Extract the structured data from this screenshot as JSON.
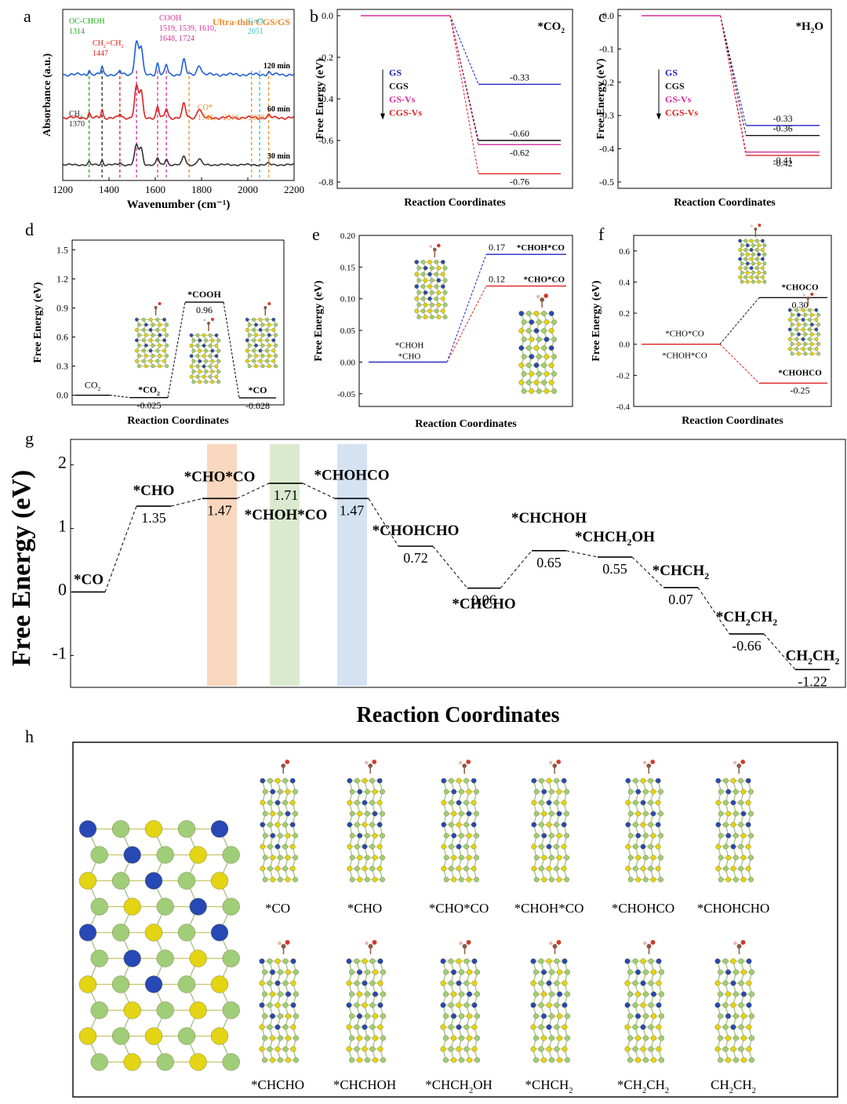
{
  "chart_data": [
    {
      "panel": "a",
      "type": "line",
      "xlabel": "Wavenumber (cm⁻¹)",
      "ylabel": "Absorbance (a.u.)",
      "xlim": [
        1200,
        2200
      ],
      "xticks": [
        "1200",
        "1400",
        "1600",
        "1800",
        "2000",
        "2200"
      ],
      "title": "Ultra-thin CGS/GS",
      "series": [
        {
          "name": "120 min",
          "color": "#1f5fd8"
        },
        {
          "name": "60 min",
          "color": "#e02020"
        },
        {
          "name": "30 min",
          "color": "#333333"
        }
      ],
      "annotations": [
        {
          "label": "OC-CHOH",
          "value": "1314",
          "x": 1314,
          "color": "#19b019"
        },
        {
          "label": "CH₂=CH₂",
          "value": "1447",
          "x": 1447,
          "color": "#e02020"
        },
        {
          "label": "CH₄",
          "value": "1370",
          "x": 1370,
          "color": "#222222"
        },
        {
          "label": "COOH",
          "value": "1519, 1539, 1610, 1648, 1724",
          "x": 1610,
          "color": "#d42e9c"
        },
        {
          "label": "CO*",
          "value": "1746、 2016、 2090",
          "x": 1746,
          "color": "#f08a2a"
        },
        {
          "label": "C≡O",
          "value": "2051",
          "x": 2051,
          "color": "#29c7c0"
        }
      ],
      "dashed_lines": [
        {
          "x": 1314,
          "color": "#19b019"
        },
        {
          "x": 1370,
          "color": "#222222"
        },
        {
          "x": 1447,
          "color": "#e02020"
        },
        {
          "x": 1519,
          "color": "#d42e9c"
        },
        {
          "x": 1610,
          "color": "#d42e9c"
        },
        {
          "x": 1648,
          "color": "#d42e9c"
        },
        {
          "x": 1746,
          "color": "#f08a2a"
        },
        {
          "x": 2016,
          "color": "#f08a2a"
        },
        {
          "x": 2051,
          "color": "#29c7c0"
        },
        {
          "x": 2090,
          "color": "#f08a2a"
        }
      ]
    },
    {
      "panel": "b",
      "type": "line",
      "title": "*CO₂",
      "xlabel": "Reaction Coordinates",
      "ylabel": "Free Energy (eV)",
      "ylim": [
        -0.8,
        0.0
      ],
      "yticks": [
        "-0.8",
        "-0.6",
        "-0.4",
        "-0.2",
        "0.0"
      ],
      "legend": [
        {
          "name": "GS",
          "color": "#2020c8"
        },
        {
          "name": "CGS",
          "color": "#111111"
        },
        {
          "name": "GS-Vs",
          "color": "#d42e9c"
        },
        {
          "name": "CGS-Vs",
          "color": "#e02020"
        }
      ],
      "levels": [
        {
          "value": -0.33,
          "label": "-0.33",
          "color": "#2020c8"
        },
        {
          "value": -0.6,
          "label": "-0.60",
          "color": "#111111"
        },
        {
          "value": -0.62,
          "label": "-0.62",
          "color": "#d42e9c"
        },
        {
          "value": -0.76,
          "label": "-0.76",
          "color": "#e02020"
        }
      ]
    },
    {
      "panel": "c",
      "type": "line",
      "title": "*H₂O",
      "xlabel": "Reaction Coordinates",
      "ylabel": "Free Energy (eV)",
      "ylim": [
        -0.5,
        0.0
      ],
      "yticks": [
        "-0.5",
        "-0.4",
        "-0.3",
        "-0.2",
        "-0.1",
        "0.0"
      ],
      "legend": [
        {
          "name": "GS",
          "color": "#2020c8"
        },
        {
          "name": "CGS",
          "color": "#111111"
        },
        {
          "name": "GS-Vs",
          "color": "#d42e9c"
        },
        {
          "name": "CGS-Vs",
          "color": "#e02020"
        }
      ],
      "levels": [
        {
          "value": -0.33,
          "label": "-0.33",
          "color": "#2020c8"
        },
        {
          "value": -0.36,
          "label": "-0.36",
          "color": "#111111"
        },
        {
          "value": -0.41,
          "label": "-0.41",
          "color": "#d42e9c"
        },
        {
          "value": -0.42,
          "label": "-0.42",
          "color": "#e02020"
        }
      ]
    },
    {
      "panel": "d",
      "type": "line",
      "xlabel": "Reaction Coordinates",
      "ylabel": "Free Energy (eV)",
      "ylim": [
        -0.1,
        1.6
      ],
      "yticks": [
        "0.0",
        "0.3",
        "0.6",
        "0.9",
        "1.2",
        "1.5"
      ],
      "steps": [
        {
          "name": "CO₂",
          "value": 0.0,
          "label": ""
        },
        {
          "name": "*CO₂",
          "value": -0.025,
          "label": "-0.025"
        },
        {
          "name": "*COOH",
          "value": 0.96,
          "label": "0.96"
        },
        {
          "name": "*CO",
          "value": -0.028,
          "label": "-0.028"
        }
      ]
    },
    {
      "panel": "e",
      "type": "line",
      "xlabel": "Reaction Coordinates",
      "ylabel": "Free Energy (eV)",
      "ylim": [
        -0.07,
        0.2
      ],
      "yticks": [
        "-0.05",
        "0.00",
        "0.05",
        "0.10",
        "0.15",
        "0.20"
      ],
      "start_labels": [
        "*CHOH",
        "*CHO"
      ],
      "levels": [
        {
          "name": "*CHOH*CO",
          "value": 0.17,
          "label": "0.17",
          "color": "#2020c8"
        },
        {
          "name": "*CHO*CO",
          "value": 0.12,
          "label": "0.12",
          "color": "#e02020"
        }
      ]
    },
    {
      "panel": "f",
      "type": "line",
      "xlabel": "Reaction Coordinates",
      "ylabel": "Free Energy (eV)",
      "ylim": [
        -0.4,
        0.7
      ],
      "yticks": [
        "-0.4",
        "-0.2",
        "0.0",
        "0.2",
        "0.4",
        "0.6"
      ],
      "start_labels": [
        "*CHO*CO",
        "*CHOH*CO"
      ],
      "levels": [
        {
          "name": "*CHOCO",
          "value": 0.3,
          "label": "0.30",
          "color": "#111111"
        },
        {
          "name": "*CHOHCO",
          "value": -0.25,
          "label": "-0.25",
          "color": "#e02020"
        }
      ]
    },
    {
      "panel": "g",
      "type": "line",
      "xlabel": "Reaction Coordinates",
      "ylabel": "Free Energy (eV)",
      "ylim": [
        -1.5,
        2.4
      ],
      "yticks": [
        "-1",
        "0",
        "1",
        "2"
      ],
      "steps": [
        {
          "name": "*CO",
          "value": 0.0,
          "label": ""
        },
        {
          "name": "*CHO",
          "value": 1.35,
          "label": "1.35"
        },
        {
          "name": "*CHO*CO",
          "value": 1.47,
          "label": "1.47"
        },
        {
          "name": "*CHOH*CO",
          "value": 1.71,
          "label": "1.71"
        },
        {
          "name": "*CHOHCO",
          "value": 1.47,
          "label": "1.47"
        },
        {
          "name": "*CHOHCHO",
          "value": 0.72,
          "label": "0.72"
        },
        {
          "name": "*CHCHO",
          "value": 0.06,
          "label": "0.06"
        },
        {
          "name": "*CHCHOH",
          "value": 0.65,
          "label": "0.65"
        },
        {
          "name": "*CHCH₂OH",
          "value": 0.55,
          "label": "0.55"
        },
        {
          "name": "*CHCH₂",
          "value": 0.07,
          "label": "0.07"
        },
        {
          "name": "*CH₂CH₂",
          "value": -0.66,
          "label": "-0.66"
        },
        {
          "name": "CH₂CH₂",
          "value": -1.22,
          "label": "-1.22"
        }
      ],
      "highlight_colors": [
        "#f5c9a8",
        "#cfe3bf",
        "#c6d8ee"
      ]
    }
  ],
  "panel_h": {
    "row1": [
      "*CO",
      "*CHO",
      "*CHO*CO",
      "*CHOH*CO",
      "*CHOHCO",
      "*CHOHCHO"
    ],
    "row2": [
      "*CHCHO",
      "*CHCHOH",
      "*CHCH₂OH",
      "*CHCH₂",
      "*CH₂CH₂",
      "CH₂CH₂"
    ]
  },
  "atom_colors": {
    "sulfur": "#e3d414",
    "gallium": "#9fcd78",
    "copper": "#2748b5",
    "oxygen": "#d23a2a",
    "carbon": "#8a5a44"
  },
  "panel_letters": [
    "a",
    "b",
    "c",
    "d",
    "e",
    "f",
    "g",
    "h"
  ]
}
